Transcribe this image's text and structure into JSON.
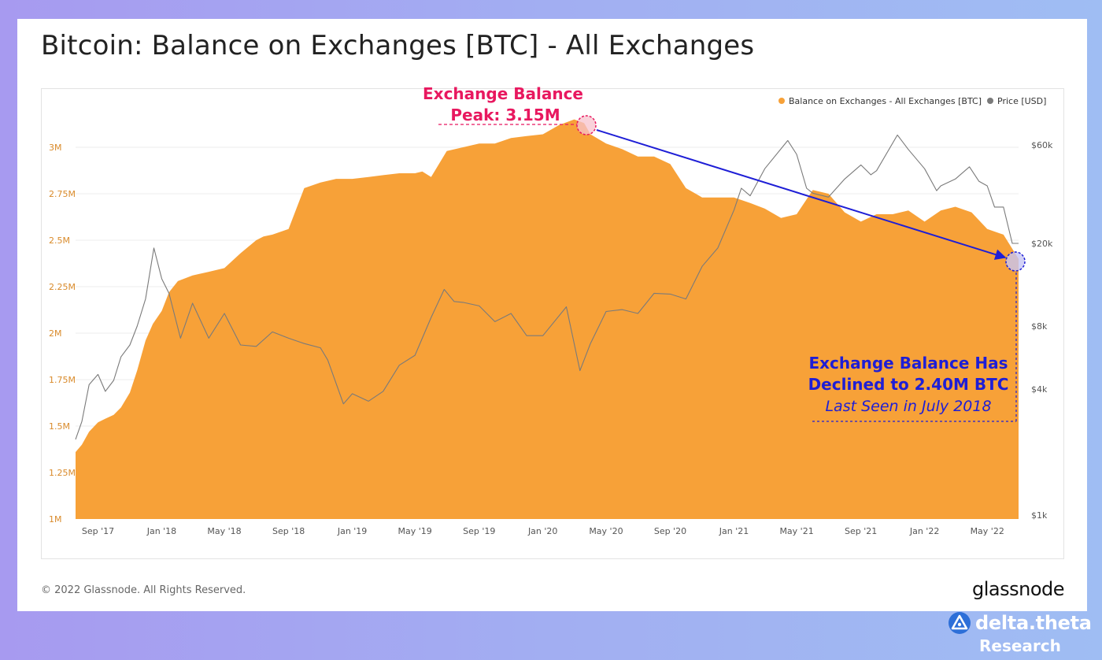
{
  "page": {
    "title": "Bitcoin: Balance on Exchanges [BTC] - All Exchanges",
    "copyright": "© 2022 Glassnode. All Rights Reserved.",
    "brand": "glassnode",
    "watermark": "glassnode",
    "research_logo": {
      "name": "delta.theta",
      "sub": "Research"
    }
  },
  "colors": {
    "balance": "#f7a138",
    "price": "#7a7a7a",
    "peak_annotation": "#e8185f",
    "decline_annotation": "#1e1ed6",
    "axis_text_left": "#d98a2a",
    "axis_text": "#555555"
  },
  "annotations": {
    "peak_line1": "Exchange Balance",
    "peak_line2": "Peak: 3.15M",
    "decline_line1": "Exchange Balance Has",
    "decline_line2": "Declined to 2.40M BTC",
    "decline_line3": "Last Seen in July 2018"
  },
  "chart_data": {
    "type": "area",
    "title": "Bitcoin: Balance on Exchanges [BTC] - All Exchanges",
    "legend": [
      "Balance on Exchanges - All Exchanges [BTC]",
      "Price [USD]"
    ],
    "legend_position": "top-right",
    "x_ticks": [
      "Sep '17",
      "Jan '18",
      "May '18",
      "Sep '18",
      "Jan '19",
      "May '19",
      "Sep '19",
      "Jan '20",
      "May '20",
      "Sep '20",
      "Jan '21",
      "May '21",
      "Sep '21",
      "Jan '22",
      "May '22"
    ],
    "y_left": {
      "ticks": [
        "1M",
        "1.25M",
        "1.5M",
        "1.75M",
        "2M",
        "2.25M",
        "2.5M",
        "2.75M",
        "3M"
      ],
      "range": [
        1000000,
        3200000
      ]
    },
    "y_right": {
      "ticks": [
        "$1k",
        "$4k",
        "$8k",
        "$20k",
        "$60k"
      ],
      "scale": "log",
      "range": [
        1000,
        100000
      ]
    },
    "grid": "horizontal",
    "series": [
      {
        "name": "Balance on Exchanges - All Exchanges [BTC]",
        "axis": "left",
        "x": [
          "2017-07-20",
          "2017-08-01",
          "2017-08-15",
          "2017-09-01",
          "2017-09-15",
          "2017-10-01",
          "2017-10-15",
          "2017-11-01",
          "2017-11-15",
          "2017-12-01",
          "2017-12-15",
          "2018-01-01",
          "2018-01-15",
          "2018-02-01",
          "2018-03-01",
          "2018-04-01",
          "2018-05-01",
          "2018-06-01",
          "2018-07-01",
          "2018-07-15",
          "2018-08-01",
          "2018-09-01",
          "2018-10-01",
          "2018-11-01",
          "2018-12-01",
          "2019-01-01",
          "2019-02-01",
          "2019-03-01",
          "2019-04-01",
          "2019-05-01",
          "2019-05-15",
          "2019-06-01",
          "2019-07-01",
          "2019-08-01",
          "2019-09-01",
          "2019-10-01",
          "2019-11-01",
          "2019-12-01",
          "2020-01-01",
          "2020-02-01",
          "2020-03-01",
          "2020-03-20",
          "2020-04-01",
          "2020-05-01",
          "2020-06-01",
          "2020-07-01",
          "2020-08-01",
          "2020-09-01",
          "2020-10-01",
          "2020-11-01",
          "2020-12-01",
          "2021-01-01",
          "2021-02-01",
          "2021-03-01",
          "2021-04-01",
          "2021-05-01",
          "2021-06-01",
          "2021-07-01",
          "2021-08-01",
          "2021-09-01",
          "2021-10-01",
          "2021-11-01",
          "2021-12-01",
          "2022-01-01",
          "2022-02-01",
          "2022-03-01",
          "2022-04-01",
          "2022-05-01",
          "2022-06-01",
          "2022-06-30"
        ],
        "values": [
          1360000,
          1400000,
          1470000,
          1520000,
          1540000,
          1560000,
          1600000,
          1680000,
          1800000,
          1960000,
          2050000,
          2120000,
          2220000,
          2280000,
          2310000,
          2330000,
          2350000,
          2430000,
          2500000,
          2520000,
          2530000,
          2560000,
          2780000,
          2810000,
          2830000,
          2830000,
          2840000,
          2850000,
          2860000,
          2860000,
          2870000,
          2840000,
          2980000,
          3000000,
          3020000,
          3020000,
          3050000,
          3060000,
          3070000,
          3120000,
          3150000,
          3130000,
          3070000,
          3020000,
          2990000,
          2950000,
          2950000,
          2910000,
          2780000,
          2730000,
          2730000,
          2730000,
          2700000,
          2670000,
          2620000,
          2640000,
          2770000,
          2750000,
          2650000,
          2600000,
          2640000,
          2640000,
          2660000,
          2600000,
          2660000,
          2680000,
          2650000,
          2560000,
          2530000,
          2400000
        ]
      },
      {
        "name": "Price [USD]",
        "axis": "right",
        "x": [
          "2017-07-20",
          "2017-08-01",
          "2017-08-15",
          "2017-09-01",
          "2017-09-15",
          "2017-10-01",
          "2017-10-15",
          "2017-11-01",
          "2017-11-15",
          "2017-12-01",
          "2017-12-17",
          "2018-01-01",
          "2018-01-15",
          "2018-02-06",
          "2018-03-01",
          "2018-04-01",
          "2018-05-01",
          "2018-06-01",
          "2018-07-01",
          "2018-08-01",
          "2018-09-01",
          "2018-10-01",
          "2018-11-01",
          "2018-11-15",
          "2018-12-15",
          "2019-01-01",
          "2019-02-01",
          "2019-03-01",
          "2019-04-01",
          "2019-05-01",
          "2019-06-01",
          "2019-06-26",
          "2019-07-15",
          "2019-08-01",
          "2019-09-01",
          "2019-10-01",
          "2019-11-01",
          "2019-12-01",
          "2020-01-01",
          "2020-02-15",
          "2020-03-12",
          "2020-04-01",
          "2020-05-01",
          "2020-06-01",
          "2020-07-01",
          "2020-08-01",
          "2020-09-01",
          "2020-10-01",
          "2020-11-01",
          "2020-12-01",
          "2021-01-01",
          "2021-01-15",
          "2021-02-01",
          "2021-03-01",
          "2021-04-14",
          "2021-05-01",
          "2021-05-20",
          "2021-06-01",
          "2021-07-01",
          "2021-08-01",
          "2021-09-01",
          "2021-09-20",
          "2021-10-01",
          "2021-11-10",
          "2021-12-01",
          "2022-01-01",
          "2022-01-24",
          "2022-02-01",
          "2022-03-01",
          "2022-03-28",
          "2022-04-15",
          "2022-05-01",
          "2022-05-15",
          "2022-06-01",
          "2022-06-18",
          "2022-06-30"
        ],
        "values": [
          2300,
          2800,
          4200,
          4700,
          3900,
          4400,
          5700,
          6500,
          8000,
          10800,
          19000,
          13500,
          11500,
          7000,
          10300,
          7000,
          9200,
          6500,
          6400,
          7500,
          7000,
          6600,
          6300,
          5500,
          3400,
          3800,
          3500,
          3900,
          5200,
          5800,
          8800,
          12000,
          10500,
          10400,
          10000,
          8400,
          9200,
          7200,
          7200,
          9900,
          4900,
          6600,
          9400,
          9600,
          9200,
          11500,
          11400,
          10800,
          15500,
          19000,
          29000,
          37000,
          34000,
          46000,
          63000,
          54000,
          37000,
          35000,
          33500,
          41000,
          48000,
          43000,
          45000,
          67000,
          57000,
          46000,
          36000,
          38000,
          41000,
          47000,
          40000,
          38000,
          30000,
          30000,
          20000,
          20000
        ]
      }
    ]
  }
}
